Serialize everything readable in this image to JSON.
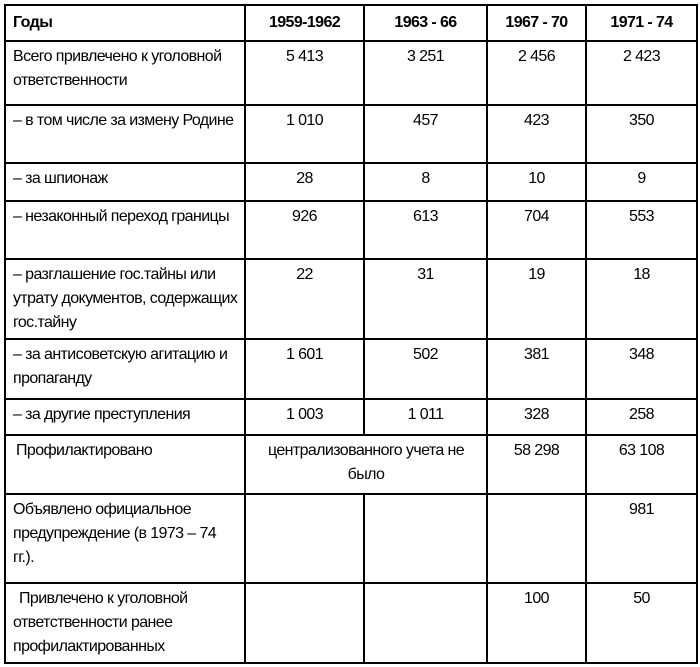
{
  "table": {
    "header": [
      "Годы",
      "1959-1962",
      "1963 - 66",
      "1967 - 70",
      "1971 - 74"
    ],
    "rows": [
      {
        "label": "Всего привлечено к уголовной ответственности",
        "values": [
          "5 413",
          "3 251",
          "2 456",
          "2 423"
        ]
      },
      {
        "label": "– в том числе за измену Родине",
        "values": [
          "1 010",
          "457",
          "423",
          "350"
        ]
      },
      {
        "label": "– за шпионаж",
        "values": [
          "28",
          "8",
          "10",
          "9"
        ]
      },
      {
        "label": "– незаконный переход границы",
        "values": [
          "926",
          "613",
          "704",
          "553"
        ]
      },
      {
        "label": "– разглашение гос.тайны или утрату документов, содержащих гос.тайну",
        "values": [
          "22",
          "31",
          "19",
          "18"
        ]
      },
      {
        "label": "– за антисоветскую агитацию и пропаганду",
        "values": [
          "1 601",
          "502",
          "381",
          "348"
        ]
      },
      {
        "label": "– за другие преступления",
        "values": [
          "1 003",
          "1 011",
          "328",
          "258"
        ]
      },
      {
        "label": "Профилактировано",
        "merged_note": "централизованного учета не было",
        "values": [
          "58 298",
          "63 108"
        ]
      },
      {
        "label": "Объявлено официальное предупреждение (в 1973 – 74 гг.).",
        "values": [
          "",
          "",
          "",
          "981"
        ]
      },
      {
        "label": "Привлечено к уголовной ответственности ранее профилактированных",
        "values": [
          "",
          "",
          "100",
          "50"
        ]
      }
    ]
  }
}
